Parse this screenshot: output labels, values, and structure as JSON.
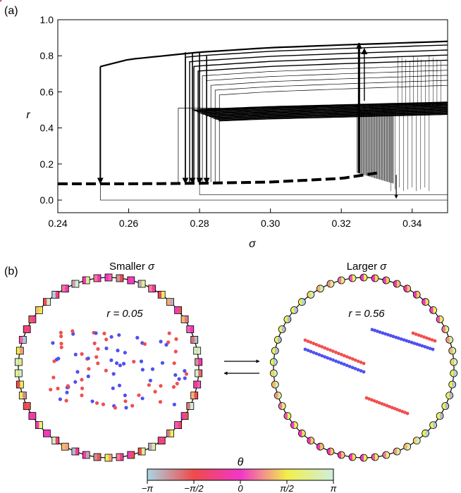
{
  "panel_a": {
    "label": "(a)"
  },
  "panel_b": {
    "label": "(b)",
    "left_title_prefix": "Smaller ",
    "right_title_prefix": "Larger ",
    "sigma_symbol": "σ",
    "left_r_label": "r = 0.05",
    "right_r_label": "r = 0.56",
    "colorbar_label": "θ",
    "colorbar_ticks": [
      "−π",
      "−π/2",
      "0",
      "π/2",
      "π"
    ],
    "colorbar_colors": [
      "#a9d6e5",
      "#ef4a4a",
      "#f236c8",
      "#f2ef4a",
      "#cfeedd"
    ],
    "cluster_colors": {
      "red": "#f0504f",
      "blue": "#5050f0"
    }
  },
  "chart_data": {
    "type": "line",
    "title": "",
    "xlabel": "σ",
    "ylabel": "r",
    "xlim": [
      0.24,
      0.35
    ],
    "ylim": [
      -0.07,
      1.0
    ],
    "xticks": [
      "0.24",
      "0.26",
      "0.28",
      "0.30",
      "0.32",
      "0.34"
    ],
    "yticks": [
      "0.0",
      "0.2",
      "0.4",
      "0.6",
      "0.8",
      "1.0"
    ],
    "grid": false,
    "series": [
      {
        "kind": "incoherent-branch",
        "style": "dashed",
        "x": [
          0.24,
          0.26,
          0.28,
          0.3,
          0.32,
          0.33
        ],
        "y": [
          0.09,
          0.09,
          0.093,
          0.1,
          0.12,
          0.15
        ]
      },
      {
        "kind": "upper-branch",
        "style": "solid",
        "x": [
          0.252,
          0.26,
          0.28,
          0.3,
          0.32,
          0.35
        ],
        "y": [
          0.74,
          0.78,
          0.82,
          0.845,
          0.86,
          0.88
        ]
      },
      {
        "kind": "middle-branch",
        "style": "solid",
        "x": [
          0.28,
          0.3,
          0.32,
          0.35
        ],
        "y": [
          0.5,
          0.515,
          0.525,
          0.54
        ]
      }
    ],
    "transitions_down": [
      {
        "x": 0.252,
        "from": 0.74,
        "to": 0.1
      },
      {
        "x": 0.276,
        "from": 0.82,
        "to": 0.1
      },
      {
        "x": 0.278,
        "from": 0.82,
        "to": 0.1
      },
      {
        "x": 0.28,
        "from": 0.82,
        "to": 0.1
      },
      {
        "x": 0.282,
        "from": 0.8,
        "to": 0.1
      }
    ],
    "transitions_up": [
      {
        "x": 0.325,
        "from": 0.15,
        "to": 0.87
      }
    ]
  }
}
